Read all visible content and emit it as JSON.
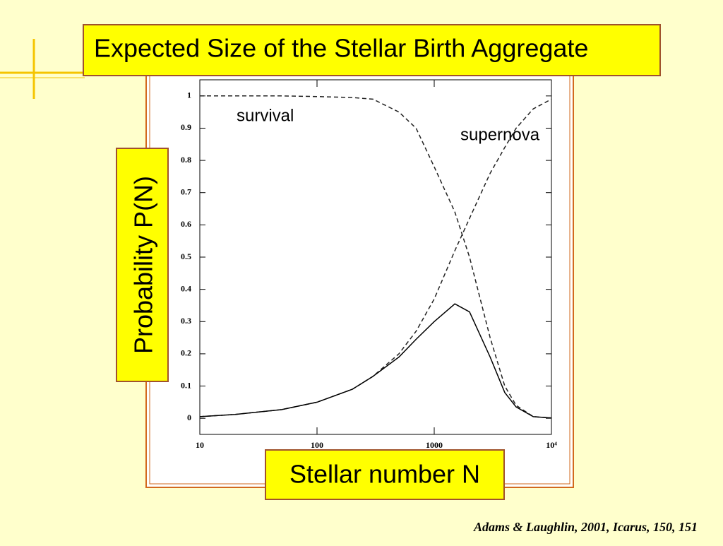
{
  "chart_data": {
    "type": "line",
    "title": "Expected Size of the Stellar Birth Aggregate",
    "y_label": "Probability P(N)",
    "x_label": "Stellar number N",
    "citation": "Adams & Laughlin, 2001, Icarus, 150, 151",
    "xscale": "log",
    "x": [
      10,
      20,
      50,
      100,
      200,
      300,
      500,
      700,
      1000,
      1500,
      2000,
      3000,
      4000,
      5000,
      7000,
      10000
    ],
    "series": [
      {
        "name": "survival",
        "color": "#222222",
        "style": "dashed",
        "values": [
          1,
          1,
          1,
          0.998,
          0.995,
          0.99,
          0.95,
          0.9,
          0.78,
          0.64,
          0.5,
          0.25,
          0.1,
          0.04,
          0.005,
          0.001
        ]
      },
      {
        "name": "supernova",
        "color": "#222222",
        "style": "dashed",
        "values": [
          0.005,
          0.012,
          0.027,
          0.05,
          0.09,
          0.13,
          0.2,
          0.27,
          0.37,
          0.52,
          0.62,
          0.76,
          0.84,
          0.9,
          0.96,
          0.99
        ]
      },
      {
        "color": "#000000",
        "style": "solid",
        "values": [
          0.005,
          0.012,
          0.027,
          0.05,
          0.09,
          0.13,
          0.19,
          0.245,
          0.3,
          0.355,
          0.33,
          0.19,
          0.08,
          0.035,
          0.005,
          0.001
        ]
      }
    ],
    "xlim": [
      10,
      10000
    ],
    "xticks": [
      10,
      100,
      1000,
      {
        "value": 10000,
        "label": "10⁴"
      }
    ],
    "ylim": [
      -0.05,
      1.05
    ],
    "yticks": [
      0,
      0.1,
      0.2,
      0.3,
      0.4,
      0.5,
      0.6,
      0.7,
      0.8,
      0.9,
      1
    ]
  }
}
